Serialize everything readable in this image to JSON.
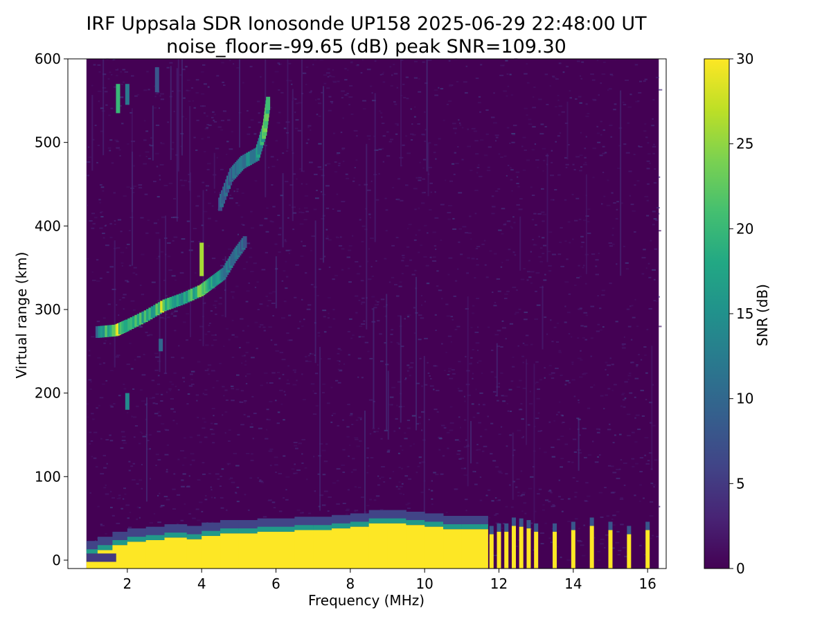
{
  "chart_data": {
    "type": "heatmap",
    "title": "IRF Uppsala SDR Ionosonde UP158 2025-06-29 22:48:00  UT",
    "subtitle": "noise_floor=-99.65 (dB) peak SNR=109.30",
    "xlabel": "Frequency (MHz)",
    "ylabel": "Virtual range (km)",
    "xlim": [
      0.4,
      16.5
    ],
    "ylim": [
      -10,
      600
    ],
    "xticks": [
      2,
      4,
      6,
      8,
      10,
      12,
      14,
      16
    ],
    "xtick_labels": [
      "2",
      "4",
      "6",
      "8",
      "10",
      "12",
      "14",
      "16"
    ],
    "yticks": [
      0,
      100,
      200,
      300,
      400,
      500,
      600
    ],
    "ytick_labels": [
      "0",
      "100",
      "200",
      "300",
      "400",
      "500",
      "600"
    ],
    "colormap": "viridis",
    "colorbar": {
      "label": "SNR (dB)",
      "range": [
        0,
        30
      ],
      "ticks": [
        0,
        5,
        10,
        15,
        20,
        25,
        30
      ],
      "tick_labels": [
        "0",
        "5",
        "10",
        "15",
        "20",
        "25",
        "30"
      ]
    },
    "data_extent_mhz": [
      0.9,
      16.3
    ],
    "grid": false,
    "features": {
      "ground_echo": {
        "points": [
          [
            0.9,
            15
          ],
          [
            1.2,
            20
          ],
          [
            1.6,
            26
          ],
          [
            2.0,
            30
          ],
          [
            2.5,
            32
          ],
          [
            3.0,
            35
          ],
          [
            3.6,
            33
          ],
          [
            4.0,
            37
          ],
          [
            4.5,
            40
          ],
          [
            5.0,
            40
          ],
          [
            5.5,
            42
          ],
          [
            6.0,
            42
          ],
          [
            6.5,
            44
          ],
          [
            7.0,
            44
          ],
          [
            7.5,
            46
          ],
          [
            8.0,
            48
          ],
          [
            8.5,
            52
          ],
          [
            9.0,
            52
          ],
          [
            9.5,
            50
          ],
          [
            10.0,
            48
          ],
          [
            10.5,
            45
          ],
          [
            11.0,
            45
          ],
          [
            11.5,
            45
          ],
          [
            11.7,
            45
          ]
        ],
        "peak_snr_db": 30
      },
      "discrete_ground_echoes": {
        "freqs_mhz": [
          11.8,
          12.0,
          12.2,
          12.4,
          12.6,
          12.8,
          13.0,
          13.5,
          14.0,
          14.5,
          15.0,
          15.5,
          16.0
        ],
        "top_km": [
          35,
          38,
          38,
          45,
          44,
          42,
          38,
          38,
          40,
          45,
          40,
          35,
          40
        ],
        "peak_snr_db": 30
      },
      "f_layer_trace": {
        "points": [
          [
            1.2,
            268
          ],
          [
            1.7,
            270
          ],
          [
            2.0,
            276
          ],
          [
            2.5,
            287
          ],
          [
            3.0,
            300
          ],
          [
            3.5,
            308
          ],
          [
            4.0,
            318
          ],
          [
            4.3,
            328
          ],
          [
            4.6,
            338
          ],
          [
            4.9,
            360
          ],
          [
            5.2,
            378
          ]
        ],
        "snr_db": [
          10,
          26,
          22,
          18,
          24,
          14,
          24,
          16,
          12,
          10,
          9
        ]
      },
      "f_layer_multihop_trace": {
        "points": [
          [
            4.5,
            420
          ],
          [
            4.8,
            455
          ],
          [
            5.1,
            470
          ],
          [
            5.5,
            480
          ],
          [
            5.7,
            510
          ],
          [
            5.8,
            545
          ]
        ],
        "snr_db": [
          9,
          10,
          11,
          14,
          20,
          18
        ]
      },
      "upper_echo_patches": [
        {
          "freq_mhz": 1.75,
          "range_km": [
            535,
            570
          ],
          "snr_db": 20
        },
        {
          "freq_mhz": 2.0,
          "range_km": [
            545,
            570
          ],
          "snr_db": 12
        },
        {
          "freq_mhz": 2.8,
          "range_km": [
            560,
            590
          ],
          "snr_db": 8
        },
        {
          "freq_mhz": 2.0,
          "range_km": [
            180,
            200
          ],
          "snr_db": 14
        },
        {
          "freq_mhz": 2.9,
          "range_km": [
            250,
            265
          ],
          "snr_db": 10
        },
        {
          "freq_mhz": 4.0,
          "range_km": [
            340,
            380
          ],
          "snr_db": 26
        }
      ]
    }
  }
}
